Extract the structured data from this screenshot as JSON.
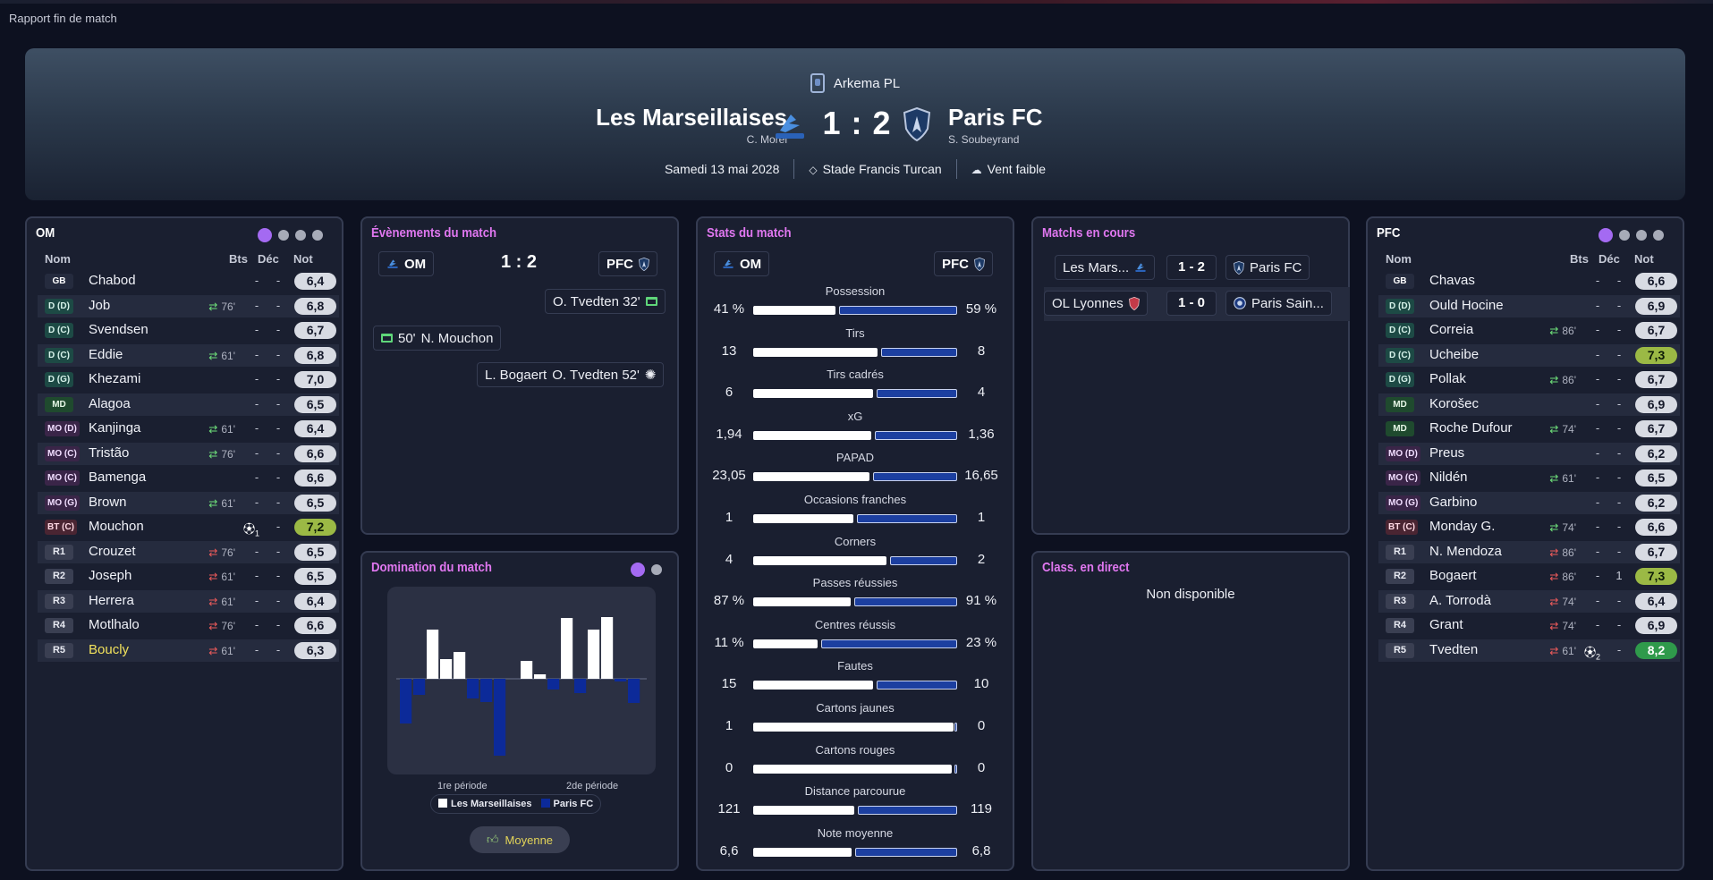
{
  "window_title": "Rapport fin de match",
  "header": {
    "competition": "Arkema PL",
    "home_team": "Les Marseillaises",
    "home_coach": "C. Morel",
    "away_team": "Paris FC",
    "away_coach": "S. Soubeyrand",
    "score": "1 : 2",
    "date": "Samedi 13 mai 2028",
    "stadium": "Stade Francis Turcan",
    "weather": "Vent faible"
  },
  "home_panel": {
    "title": "OM",
    "columns": {
      "name": "Nom",
      "goals": "Bts",
      "decisive": "Déc",
      "rating": "Not"
    },
    "players": [
      {
        "pos": "GB",
        "name": "Chabod",
        "sub": "",
        "goals": "-",
        "dec": "-",
        "rating": "6,4"
      },
      {
        "pos": "D (D)",
        "name": "Job",
        "sub": "76'",
        "goals": "-",
        "dec": "-",
        "rating": "6,8"
      },
      {
        "pos": "D (C)",
        "name": "Svendsen",
        "sub": "",
        "goals": "-",
        "dec": "-",
        "rating": "6,7"
      },
      {
        "pos": "D (C)",
        "name": "Eddie",
        "sub": "61'",
        "goals": "-",
        "dec": "-",
        "rating": "6,8"
      },
      {
        "pos": "D (G)",
        "name": "Khezami",
        "sub": "",
        "goals": "-",
        "dec": "-",
        "rating": "7,0"
      },
      {
        "pos": "MD",
        "name": "Alagoa",
        "sub": "",
        "goals": "-",
        "dec": "-",
        "rating": "6,5"
      },
      {
        "pos": "MO (D)",
        "name": "Kanjinga",
        "sub": "61'",
        "goals": "-",
        "dec": "-",
        "rating": "6,4"
      },
      {
        "pos": "MO (C)",
        "name": "Tristão",
        "sub": "76'",
        "goals": "-",
        "dec": "-",
        "rating": "6,6"
      },
      {
        "pos": "MO (C)",
        "name": "Bamenga",
        "sub": "",
        "goals": "-",
        "dec": "-",
        "rating": "6,6"
      },
      {
        "pos": "MO (G)",
        "name": "Brown",
        "sub": "61'",
        "goals": "-",
        "dec": "-",
        "rating": "6,5"
      },
      {
        "pos": "BT (C)",
        "name": "Mouchon",
        "sub": "",
        "goals": "1",
        "dec": "-",
        "rating": "7,2"
      },
      {
        "pos": "R1",
        "name": "Crouzet",
        "sub": "76'",
        "goals": "-",
        "dec": "-",
        "rating": "6,5"
      },
      {
        "pos": "R2",
        "name": "Joseph",
        "sub": "61'",
        "goals": "-",
        "dec": "-",
        "rating": "6,5"
      },
      {
        "pos": "R3",
        "name": "Herrera",
        "sub": "61'",
        "goals": "-",
        "dec": "-",
        "rating": "6,4"
      },
      {
        "pos": "R4",
        "name": "Motlhalo",
        "sub": "76'",
        "goals": "-",
        "dec": "-",
        "rating": "6,6"
      },
      {
        "pos": "R5",
        "name": "Boucly",
        "sub": "61'",
        "goals": "-",
        "dec": "-",
        "rating": "6,3"
      }
    ]
  },
  "away_panel": {
    "title": "PFC",
    "columns": {
      "name": "Nom",
      "goals": "Bts",
      "decisive": "Déc",
      "rating": "Not"
    },
    "players": [
      {
        "pos": "GB",
        "name": "Chavas",
        "sub": "",
        "goals": "-",
        "dec": "-",
        "rating": "6,6"
      },
      {
        "pos": "D (D)",
        "name": "Ould Hocine",
        "sub": "",
        "goals": "-",
        "dec": "-",
        "rating": "6,9"
      },
      {
        "pos": "D (C)",
        "name": "Correia",
        "sub": "86'",
        "goals": "-",
        "dec": "-",
        "rating": "6,7"
      },
      {
        "pos": "D (C)",
        "name": "Ucheibe",
        "sub": "",
        "goals": "-",
        "dec": "-",
        "rating": "7,3"
      },
      {
        "pos": "D (G)",
        "name": "Pollak",
        "sub": "86'",
        "goals": "-",
        "dec": "-",
        "rating": "6,7"
      },
      {
        "pos": "MD",
        "name": "Korošec",
        "sub": "",
        "goals": "-",
        "dec": "-",
        "rating": "6,9"
      },
      {
        "pos": "MD",
        "name": "Roche Dufour",
        "sub": "74'",
        "goals": "-",
        "dec": "-",
        "rating": "6,7"
      },
      {
        "pos": "MO (D)",
        "name": "Preus",
        "sub": "",
        "goals": "-",
        "dec": "-",
        "rating": "6,2"
      },
      {
        "pos": "MO (C)",
        "name": "Nildén",
        "sub": "61'",
        "goals": "-",
        "dec": "-",
        "rating": "6,5"
      },
      {
        "pos": "MO (G)",
        "name": "Garbino",
        "sub": "",
        "goals": "-",
        "dec": "-",
        "rating": "6,2"
      },
      {
        "pos": "BT (C)",
        "name": "Monday G.",
        "sub": "74'",
        "goals": "-",
        "dec": "-",
        "rating": "6,6"
      },
      {
        "pos": "R1",
        "name": "N. Mendoza",
        "sub": "86'",
        "goals": "-",
        "dec": "-",
        "rating": "6,7"
      },
      {
        "pos": "R2",
        "name": "Bogaert",
        "sub": "86'",
        "goals": "-",
        "dec": "1",
        "rating": "7,3"
      },
      {
        "pos": "R3",
        "name": "A. Torrodà",
        "sub": "74'",
        "goals": "-",
        "dec": "-",
        "rating": "6,4"
      },
      {
        "pos": "R4",
        "name": "Grant",
        "sub": "74'",
        "goals": "-",
        "dec": "-",
        "rating": "6,9"
      },
      {
        "pos": "R5",
        "name": "Tvedten",
        "sub": "61'",
        "goals": "2",
        "dec": "-",
        "rating": "8,2"
      }
    ]
  },
  "events_panel": {
    "title": "Évènements du match",
    "home_short": "OM",
    "away_short": "PFC",
    "score": "1 : 2",
    "events": [
      {
        "side": "away",
        "text": "O. Tvedten 32'",
        "icon": "goal-icon"
      },
      {
        "side": "home",
        "minute": "50'",
        "text": "N. Mouchon",
        "icon": "goal-icon"
      },
      {
        "side": "away",
        "assist": "L. Bogaert",
        "text": "O. Tvedten 52'",
        "icon": "ball-icon"
      }
    ]
  },
  "stats_panel": {
    "title": "Stats du match",
    "home_short": "OM",
    "away_short": "PFC",
    "stats": [
      {
        "label": "Possession",
        "home": "41 %",
        "away": "59 %",
        "h": 41,
        "a": 59
      },
      {
        "label": "Tirs",
        "home": "13",
        "away": "8",
        "h": 13,
        "a": 8
      },
      {
        "label": "Tirs cadrés",
        "home": "6",
        "away": "4",
        "h": 6,
        "a": 4
      },
      {
        "label": "xG",
        "home": "1,94",
        "away": "1,36",
        "h": 1.94,
        "a": 1.36
      },
      {
        "label": "PAPAD",
        "home": "23,05",
        "away": "16,65",
        "h": 23.05,
        "a": 16.65
      },
      {
        "label": "Occasions franches",
        "home": "1",
        "away": "1",
        "h": 1,
        "a": 1
      },
      {
        "label": "Corners",
        "home": "4",
        "away": "2",
        "h": 4,
        "a": 2
      },
      {
        "label": "Passes réussies",
        "home": "87 %",
        "away": "91 %",
        "h": 87,
        "a": 91
      },
      {
        "label": "Centres réussis",
        "home": "11 %",
        "away": "23 %",
        "h": 11,
        "a": 23
      },
      {
        "label": "Fautes",
        "home": "15",
        "away": "10",
        "h": 15,
        "a": 10
      },
      {
        "label": "Cartons jaunes",
        "home": "1",
        "away": "0",
        "h": 1,
        "a": 0
      },
      {
        "label": "Cartons rouges",
        "home": "0",
        "away": "0",
        "h": 0,
        "a": 0
      },
      {
        "label": "Distance parcourue",
        "home": "121",
        "away": "119",
        "h": 121,
        "a": 119
      },
      {
        "label": "Note moyenne",
        "home": "6,6",
        "away": "6,8",
        "h": 6.6,
        "a": 6.8
      }
    ]
  },
  "live_matches_panel": {
    "title": "Matchs en cours",
    "matches": [
      {
        "home": "Les Mars...",
        "score": "1 - 2",
        "away": "Paris FC"
      },
      {
        "home": "OL Lyonnes",
        "score": "1 - 0",
        "away": "Paris Sain..."
      }
    ]
  },
  "standings_panel": {
    "title": "Class. en direct",
    "message": "Non disponible"
  },
  "domination_panel": {
    "title": "Domination du match",
    "legend_home": "Les Marseillaises",
    "legend_away": "Paris FC",
    "verdict": "Moyenne"
  },
  "chart_data": {
    "type": "bar",
    "xlabels": [
      "1re période",
      "2de période"
    ],
    "series": [
      {
        "name": "Les Marseillaises",
        "values": [
          0,
          0,
          0.55,
          0.22,
          0.3,
          0,
          0,
          0,
          0,
          0.2,
          0.05,
          0,
          0.68,
          0,
          0.55,
          0.69,
          0,
          0
        ]
      },
      {
        "name": "Paris FC",
        "values": [
          -0.5,
          -0.18,
          0,
          0,
          0,
          -0.22,
          -0.26,
          -0.86,
          0,
          0,
          0,
          -0.12,
          0,
          -0.16,
          0,
          0,
          -0.03,
          -0.27
        ]
      }
    ],
    "colors": {
      "home": "#ffffff",
      "away": "#0c2a99"
    },
    "ylim": [
      -1,
      1
    ]
  },
  "colors": {
    "accent": "#e077f0",
    "active_dot": "#a46af2"
  }
}
